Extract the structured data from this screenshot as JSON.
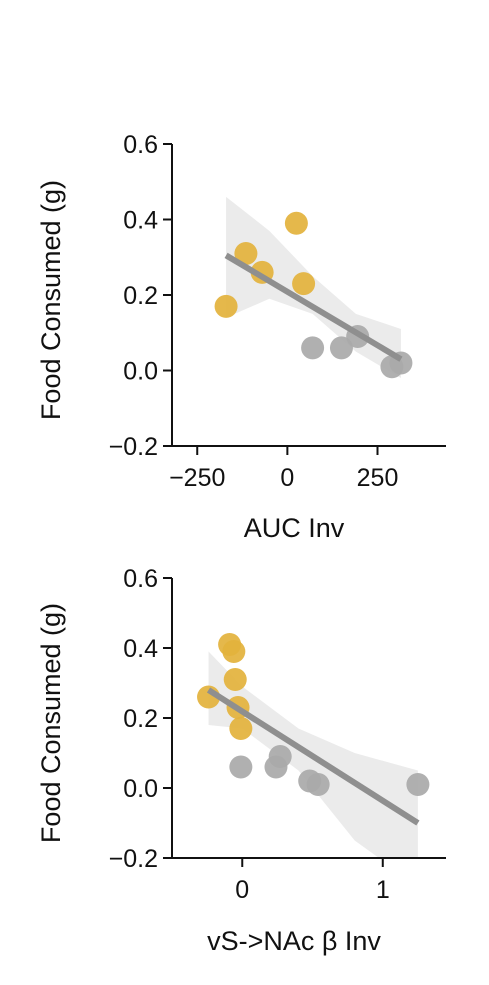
{
  "colors": {
    "group_a": "#e3b23c",
    "group_b": "#a9a9a9",
    "fit_line": "#8f8f8f",
    "ci_band": "#ebebeb",
    "axis": "#111111"
  },
  "chart_data": [
    {
      "type": "scatter",
      "xlabel": "AUC Inv",
      "ylabel": "Food Consumed (g)",
      "xlim": [
        -320,
        440
      ],
      "ylim": [
        -0.2,
        0.6
      ],
      "xticks": [
        -250,
        0,
        250
      ],
      "xtick_labels": [
        "−250",
        "0",
        "250"
      ],
      "yticks": [
        -0.2,
        0.0,
        0.2,
        0.4,
        0.6
      ],
      "ytick_labels": [
        "−0.2",
        "0.0",
        "0.2",
        "0.4",
        "0.6"
      ],
      "series": [
        {
          "color": "group_a",
          "x": [
            -170,
            -115,
            -70,
            25,
            45
          ],
          "y": [
            0.17,
            0.31,
            0.26,
            0.39,
            0.23
          ]
        },
        {
          "color": "group_b",
          "x": [
            70,
            150,
            195,
            290,
            315
          ],
          "y": [
            0.06,
            0.06,
            0.09,
            0.01,
            0.02
          ]
        }
      ],
      "fit": {
        "x": [
          -170,
          315
        ],
        "y": [
          0.305,
          0.03
        ]
      },
      "ci": {
        "x": [
          -170,
          -50,
          70,
          190,
          315
        ],
        "upper": [
          0.46,
          0.37,
          0.25,
          0.15,
          0.11
        ],
        "lower": [
          0.14,
          0.19,
          0.15,
          0.05,
          -0.02
        ]
      }
    },
    {
      "type": "scatter",
      "xlabel": "vS->NAc β Inv",
      "ylabel": "Food Consumed (g)",
      "xlim": [
        -0.5,
        1.45
      ],
      "ylim": [
        -0.2,
        0.6
      ],
      "xticks": [
        0,
        1
      ],
      "xtick_labels": [
        "0",
        "1"
      ],
      "yticks": [
        -0.2,
        0.0,
        0.2,
        0.4,
        0.6
      ],
      "ytick_labels": [
        "−0.2",
        "0.0",
        "0.2",
        "0.4",
        "0.6"
      ],
      "series": [
        {
          "color": "group_a",
          "x": [
            -0.24,
            -0.09,
            -0.06,
            -0.05,
            -0.03,
            -0.01
          ],
          "y": [
            0.26,
            0.41,
            0.39,
            0.31,
            0.23,
            0.17
          ]
        },
        {
          "color": "group_b",
          "x": [
            -0.01,
            0.24,
            0.27,
            0.48,
            0.54,
            1.25
          ],
          "y": [
            0.06,
            0.06,
            0.09,
            0.02,
            0.01,
            0.01
          ]
        }
      ],
      "fit": {
        "x": [
          -0.24,
          1.25
        ],
        "y": [
          0.28,
          -0.1
        ]
      },
      "ci": {
        "x": [
          -0.24,
          0.0,
          0.4,
          0.8,
          1.25
        ],
        "upper": [
          0.39,
          0.29,
          0.17,
          0.1,
          0.05
        ],
        "lower": [
          0.18,
          0.17,
          0.05,
          -0.15,
          -0.28
        ]
      }
    }
  ]
}
